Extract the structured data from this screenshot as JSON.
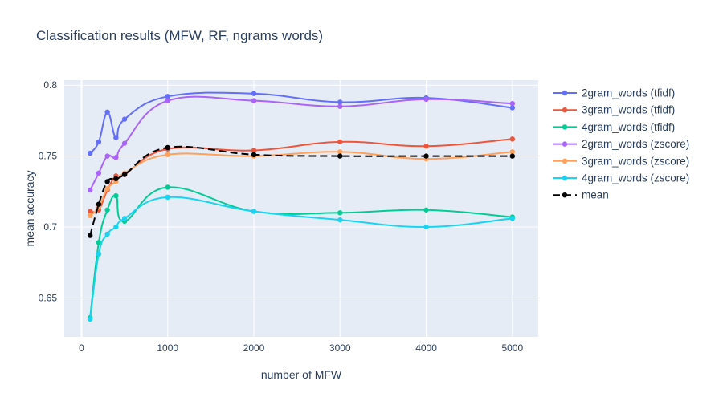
{
  "chart_data": {
    "type": "line",
    "title": "Classification results (MFW, RF, ngrams words)",
    "xlabel": "number of MFW",
    "ylabel": "mean accuracy",
    "xlim": [
      -200,
      5300
    ],
    "ylim": [
      0.6225,
      0.8035
    ],
    "x_ticks": [
      0,
      1000,
      2000,
      3000,
      4000,
      5000
    ],
    "x_tick_labels": [
      "0",
      "1000",
      "2000",
      "3000",
      "4000",
      "5000"
    ],
    "y_ticks": [
      0.65,
      0.7,
      0.75,
      0.8
    ],
    "y_tick_labels": [
      "0.65",
      "0.7",
      "0.75",
      "0.8"
    ],
    "grid": true,
    "legend_position": "right",
    "x": [
      100,
      200,
      300,
      400,
      500,
      1000,
      2000,
      3000,
      4000,
      5000
    ],
    "series": [
      {
        "name": "2gram_words (tfidf)",
        "color": "#636efa",
        "dash": "solid",
        "values": [
          0.752,
          0.76,
          0.781,
          0.763,
          0.776,
          0.792,
          0.794,
          0.788,
          0.791,
          0.784
        ]
      },
      {
        "name": "3gram_words (tfidf)",
        "color": "#EF553B",
        "dash": "solid",
        "values": [
          0.711,
          0.712,
          0.726,
          0.736,
          0.737,
          0.755,
          0.754,
          0.76,
          0.757,
          0.762
        ]
      },
      {
        "name": "4gram_words (tfidf)",
        "color": "#00cc96",
        "dash": "solid",
        "values": [
          0.636,
          0.689,
          0.712,
          0.722,
          0.704,
          0.728,
          0.711,
          0.71,
          0.712,
          0.707
        ]
      },
      {
        "name": "2gram_words (zscore)",
        "color": "#ab63fa",
        "dash": "solid",
        "values": [
          0.726,
          0.738,
          0.75,
          0.749,
          0.759,
          0.789,
          0.789,
          0.785,
          0.79,
          0.787
        ]
      },
      {
        "name": "3gram_words (zscore)",
        "color": "#FFA15A",
        "dash": "solid",
        "values": [
          0.708,
          0.714,
          0.727,
          0.732,
          0.738,
          0.751,
          0.75,
          0.753,
          0.748,
          0.753
        ]
      },
      {
        "name": "4gram_words (zscore)",
        "color": "#19d3f3",
        "dash": "solid",
        "values": [
          0.635,
          0.681,
          0.695,
          0.7,
          0.706,
          0.721,
          0.711,
          0.705,
          0.7,
          0.706
        ]
      },
      {
        "name": "mean",
        "color": "#000000",
        "dash": "dash",
        "values": [
          0.694,
          0.716,
          0.732,
          0.734,
          0.737,
          0.756,
          0.751,
          0.75,
          0.75,
          0.75
        ]
      }
    ],
    "colors": {
      "plot_background": "#E5ECF6",
      "grid": "#ffffff",
      "text": "#2a3f5f"
    }
  }
}
